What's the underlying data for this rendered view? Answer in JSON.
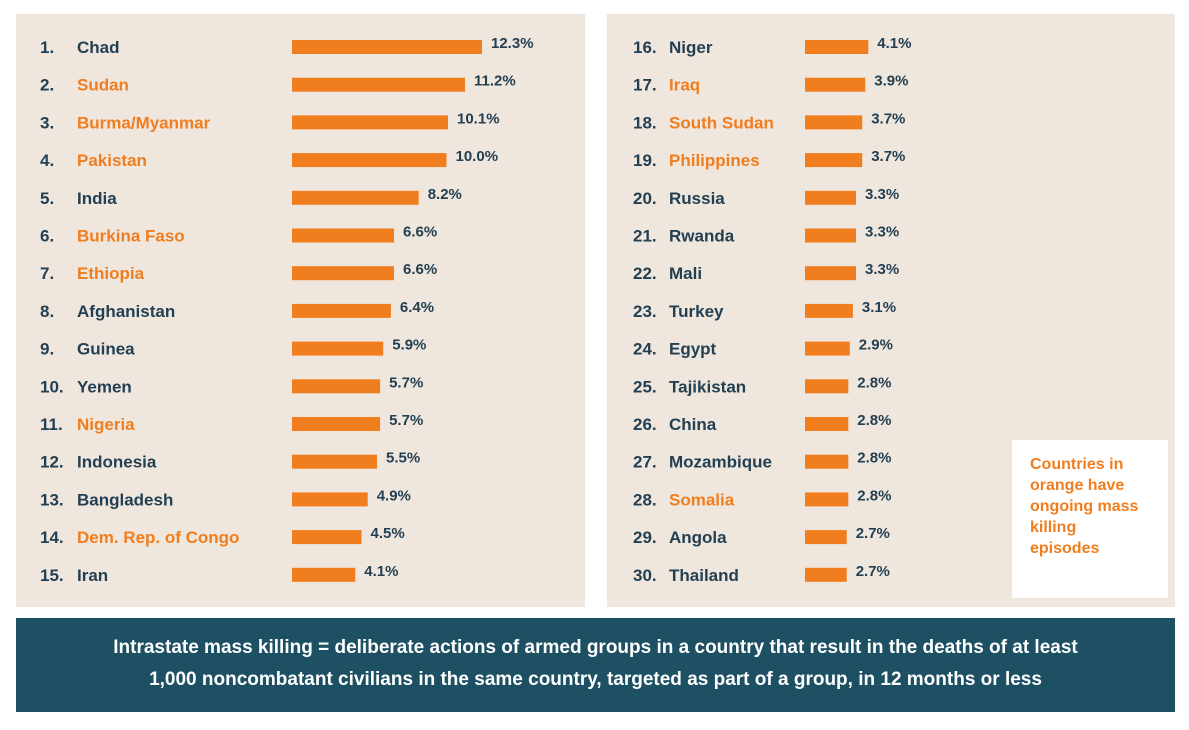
{
  "colors": {
    "orange": "#f07d1e",
    "navy": "#233f52",
    "panel_bg": "#efe7dd",
    "banner_bg": "#1e5064"
  },
  "chart_data": [
    {
      "type": "bar",
      "orientation": "horizontal",
      "title": "",
      "unit": "%",
      "categories": [
        "Chad",
        "Sudan",
        "Burma/Myanmar",
        "Pakistan",
        "India",
        "Burkina Faso",
        "Ethiopia",
        "Afghanistan",
        "Guinea",
        "Yemen",
        "Nigeria",
        "Indonesia",
        "Bangladesh",
        "Dem. Rep. of Congo",
        "Iran"
      ],
      "rank_labels": [
        "1.",
        "2.",
        "3.",
        "4.",
        "5.",
        "6.",
        "7.",
        "8.",
        "9.",
        "10.",
        "11.",
        "12.",
        "13.",
        "14.",
        "15."
      ],
      "values": [
        12.3,
        11.2,
        10.1,
        10.0,
        8.2,
        6.6,
        6.6,
        6.4,
        5.9,
        5.7,
        5.7,
        5.5,
        4.9,
        4.5,
        4.1
      ],
      "value_labels": [
        "12.3%",
        "11.2%",
        "10.1%",
        "10.0%",
        "8.2%",
        "6.6%",
        "6.6%",
        "6.4%",
        "5.9%",
        "5.7%",
        "5.7%",
        "5.5%",
        "4.9%",
        "4.5%",
        "4.1%"
      ],
      "ongoing": [
        false,
        true,
        true,
        true,
        false,
        true,
        true,
        false,
        false,
        false,
        true,
        false,
        false,
        true,
        false
      ],
      "xlim": [
        0,
        12.3
      ]
    },
    {
      "type": "bar",
      "orientation": "horizontal",
      "title": "",
      "unit": "%",
      "categories": [
        "Niger",
        "Iraq",
        "South Sudan",
        "Philippines",
        "Russia",
        "Rwanda",
        "Mali",
        "Turkey",
        "Egypt",
        "Tajikistan",
        "China",
        "Mozambique",
        "Somalia",
        "Angola",
        "Thailand"
      ],
      "rank_labels": [
        "16.",
        "17.",
        "18.",
        "19.",
        "20.",
        "21.",
        "22.",
        "23.",
        "24.",
        "25.",
        "26.",
        "27.",
        "28.",
        "29.",
        "30."
      ],
      "values": [
        4.1,
        3.9,
        3.7,
        3.7,
        3.3,
        3.3,
        3.3,
        3.1,
        2.9,
        2.8,
        2.8,
        2.8,
        2.8,
        2.7,
        2.7
      ],
      "value_labels": [
        "4.1%",
        "3.9%",
        "3.7%",
        "3.7%",
        "3.3%",
        "3.3%",
        "3.3%",
        "3.1%",
        "2.9%",
        "2.8%",
        "2.8%",
        "2.8%",
        "2.8%",
        "2.7%",
        "2.7%"
      ],
      "ongoing": [
        false,
        true,
        true,
        true,
        false,
        false,
        false,
        false,
        false,
        false,
        false,
        false,
        true,
        false,
        false
      ],
      "xlim": [
        0,
        12.3
      ]
    }
  ],
  "legend_note": {
    "lines": [
      "Countries in",
      "orange have",
      "ongoing mass",
      "killing",
      "episodes"
    ]
  },
  "definition": {
    "line1": "Intrastate mass killing = deliberate actions of armed groups in a country that result in the deaths of at least",
    "line2": "1,000 noncombatant civilians in the same country, targeted as part of a group, in 12 months or less"
  }
}
